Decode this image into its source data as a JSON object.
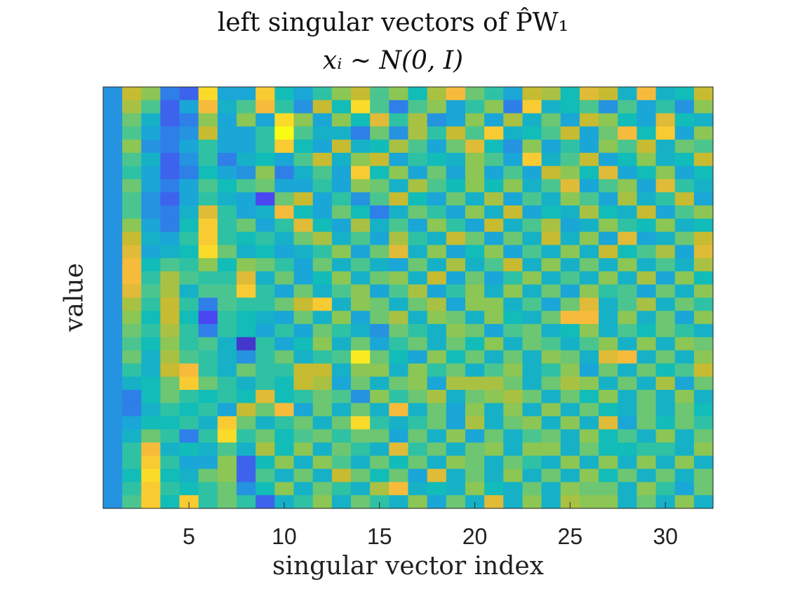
{
  "chart_data": {
    "type": "heatmap",
    "title": [
      "left singular vectors of P̂W₁",
      "xᵢ ~ N(0, I)"
    ],
    "xlabel": "singular vector index",
    "ylabel": "value",
    "xticks": [
      5,
      10,
      15,
      20,
      25,
      30
    ],
    "xlim": [
      0.5,
      32.5
    ],
    "n_rows": 32,
    "n_cols": 32,
    "grid": false,
    "colormap": "parula",
    "colormap_stops": [
      "#3e26a8",
      "#4a47f2",
      "#2f7fe8",
      "#1aa6d6",
      "#12bcb8",
      "#4bc58f",
      "#8cc654",
      "#c6bb31",
      "#f7bb3c",
      "#fadb2a",
      "#f9fb15"
    ],
    "values": [
      [
        0.25,
        0.7,
        0.6,
        0.2,
        0.15,
        0.9,
        0.3,
        0.3,
        0.85,
        0.4,
        0.3,
        0.45,
        0.6,
        0.7,
        0.5,
        0.6,
        0.4,
        0.65,
        0.8,
        0.55,
        0.45,
        0.3,
        0.7,
        0.65,
        0.4,
        0.75,
        0.7,
        0.35,
        0.8,
        0.35,
        0.4,
        0.7
      ],
      [
        0.25,
        0.65,
        0.5,
        0.15,
        0.3,
        0.8,
        0.35,
        0.5,
        0.8,
        0.45,
        0.25,
        0.7,
        0.4,
        0.9,
        0.5,
        0.2,
        0.5,
        0.6,
        0.3,
        0.45,
        0.6,
        0.2,
        0.85,
        0.35,
        0.4,
        0.5,
        0.25,
        0.5,
        0.3,
        0.45,
        0.25,
        0.6
      ],
      [
        0.25,
        0.55,
        0.35,
        0.15,
        0.2,
        0.6,
        0.3,
        0.6,
        0.3,
        0.9,
        0.6,
        0.3,
        0.6,
        0.4,
        0.75,
        0.45,
        0.65,
        0.25,
        0.3,
        0.6,
        0.3,
        0.65,
        0.35,
        0.55,
        0.3,
        0.7,
        0.6,
        0.4,
        0.3,
        0.75,
        0.4,
        0.35
      ],
      [
        0.25,
        0.5,
        0.3,
        0.2,
        0.25,
        0.7,
        0.3,
        0.3,
        0.45,
        1.0,
        0.5,
        0.35,
        0.35,
        0.2,
        0.55,
        0.25,
        0.65,
        0.45,
        0.7,
        0.5,
        0.85,
        0.35,
        0.4,
        0.5,
        0.7,
        0.3,
        0.55,
        0.8,
        0.4,
        0.85,
        0.3,
        0.6
      ],
      [
        0.25,
        0.6,
        0.25,
        0.2,
        0.3,
        0.45,
        0.3,
        0.3,
        0.45,
        0.85,
        0.4,
        0.3,
        0.7,
        0.35,
        0.4,
        0.65,
        0.5,
        0.3,
        0.55,
        0.75,
        0.4,
        0.25,
        0.6,
        0.3,
        0.45,
        0.3,
        0.6,
        0.5,
        0.7,
        0.35,
        0.55,
        0.5
      ],
      [
        0.25,
        0.5,
        0.35,
        0.15,
        0.25,
        0.45,
        0.2,
        0.35,
        0.4,
        0.3,
        0.5,
        0.7,
        0.35,
        0.6,
        0.7,
        0.3,
        0.45,
        0.4,
        0.35,
        0.6,
        0.5,
        0.3,
        0.85,
        0.35,
        0.5,
        0.7,
        0.3,
        0.4,
        0.6,
        0.35,
        0.4,
        0.7
      ],
      [
        0.25,
        0.45,
        0.3,
        0.15,
        0.2,
        0.4,
        0.3,
        0.25,
        0.6,
        0.2,
        0.35,
        0.5,
        0.3,
        0.85,
        0.4,
        0.6,
        0.3,
        0.55,
        0.3,
        0.6,
        0.3,
        0.5,
        0.3,
        0.7,
        0.6,
        0.4,
        0.75,
        0.3,
        0.4,
        0.6,
        0.3,
        0.4
      ],
      [
        0.25,
        0.55,
        0.3,
        0.2,
        0.3,
        0.5,
        0.4,
        0.5,
        0.55,
        0.3,
        0.3,
        0.45,
        0.3,
        0.6,
        0.55,
        0.35,
        0.65,
        0.5,
        0.4,
        0.6,
        0.4,
        0.6,
        0.35,
        0.5,
        0.75,
        0.3,
        0.5,
        0.6,
        0.3,
        0.75,
        0.45,
        0.35
      ],
      [
        0.25,
        0.5,
        0.25,
        0.15,
        0.3,
        0.45,
        0.35,
        0.3,
        0.1,
        0.55,
        0.7,
        0.3,
        0.45,
        0.25,
        0.5,
        0.7,
        0.4,
        0.3,
        0.55,
        0.35,
        0.65,
        0.3,
        0.5,
        0.35,
        0.6,
        0.5,
        0.3,
        0.65,
        0.35,
        0.45,
        0.7,
        0.3
      ],
      [
        0.25,
        0.5,
        0.25,
        0.2,
        0.35,
        0.75,
        0.45,
        0.3,
        0.35,
        0.8,
        0.4,
        0.3,
        0.55,
        0.4,
        0.2,
        0.35,
        0.55,
        0.45,
        0.3,
        0.6,
        0.35,
        0.7,
        0.3,
        0.4,
        0.35,
        0.65,
        0.4,
        0.35,
        0.7,
        0.3,
        0.5,
        0.6
      ],
      [
        0.25,
        0.6,
        0.3,
        0.2,
        0.4,
        0.85,
        0.45,
        0.55,
        0.3,
        0.45,
        0.75,
        0.4,
        0.3,
        0.65,
        0.35,
        0.5,
        0.3,
        0.6,
        0.45,
        0.3,
        0.7,
        0.35,
        0.5,
        0.65,
        0.3,
        0.35,
        0.6,
        0.45,
        0.4,
        0.6,
        0.35,
        0.4
      ],
      [
        0.25,
        0.7,
        0.35,
        0.3,
        0.45,
        0.85,
        0.45,
        0.4,
        0.45,
        0.35,
        0.55,
        0.65,
        0.35,
        0.5,
        0.3,
        0.65,
        0.45,
        0.35,
        0.7,
        0.55,
        0.3,
        0.55,
        0.35,
        0.7,
        0.35,
        0.6,
        0.3,
        0.75,
        0.3,
        0.35,
        0.55,
        0.7
      ],
      [
        0.25,
        0.75,
        0.3,
        0.35,
        0.4,
        0.9,
        0.55,
        0.35,
        0.4,
        0.3,
        0.35,
        0.45,
        0.6,
        0.3,
        0.55,
        0.75,
        0.35,
        0.6,
        0.3,
        0.4,
        0.6,
        0.3,
        0.5,
        0.35,
        0.6,
        0.35,
        0.7,
        0.4,
        0.5,
        0.65,
        0.3,
        0.75
      ],
      [
        0.25,
        0.8,
        0.4,
        0.5,
        0.45,
        0.6,
        0.4,
        0.6,
        0.55,
        0.45,
        0.3,
        0.55,
        0.35,
        0.5,
        0.35,
        0.3,
        0.55,
        0.35,
        0.65,
        0.35,
        0.5,
        0.7,
        0.35,
        0.6,
        0.35,
        0.55,
        0.35,
        0.6,
        0.35,
        0.5,
        0.35,
        0.65
      ],
      [
        0.25,
        0.8,
        0.45,
        0.65,
        0.5,
        0.45,
        0.45,
        0.75,
        0.35,
        0.55,
        0.3,
        0.4,
        0.6,
        0.35,
        0.55,
        0.6,
        0.35,
        0.7,
        0.3,
        0.55,
        0.3,
        0.45,
        0.6,
        0.35,
        0.5,
        0.35,
        0.6,
        0.35,
        0.65,
        0.3,
        0.6,
        0.4
      ],
      [
        0.25,
        0.75,
        0.5,
        0.65,
        0.35,
        0.5,
        0.5,
        0.85,
        0.45,
        0.3,
        0.55,
        0.35,
        0.5,
        0.6,
        0.3,
        0.5,
        0.65,
        0.3,
        0.45,
        0.6,
        0.35,
        0.6,
        0.35,
        0.55,
        0.3,
        0.6,
        0.45,
        0.5,
        0.3,
        0.55,
        0.35,
        0.6
      ],
      [
        0.25,
        0.65,
        0.45,
        0.7,
        0.45,
        0.2,
        0.5,
        0.45,
        0.45,
        0.55,
        0.7,
        0.85,
        0.35,
        0.6,
        0.55,
        0.35,
        0.55,
        0.65,
        0.3,
        0.6,
        0.6,
        0.35,
        0.5,
        0.3,
        0.55,
        0.75,
        0.35,
        0.5,
        0.65,
        0.35,
        0.55,
        0.45
      ],
      [
        0.25,
        0.6,
        0.4,
        0.7,
        0.4,
        0.1,
        0.45,
        0.4,
        0.35,
        0.3,
        0.55,
        0.35,
        0.6,
        0.3,
        0.55,
        0.65,
        0.35,
        0.6,
        0.55,
        0.35,
        0.6,
        0.4,
        0.35,
        0.55,
        0.8,
        0.8,
        0.35,
        0.6,
        0.35,
        0.55,
        0.3,
        0.6
      ],
      [
        0.25,
        0.55,
        0.45,
        0.65,
        0.45,
        0.2,
        0.45,
        0.4,
        0.3,
        0.45,
        0.3,
        0.55,
        0.45,
        0.35,
        0.25,
        0.55,
        0.45,
        0.35,
        0.6,
        0.55,
        0.3,
        0.5,
        0.55,
        0.35,
        0.4,
        0.6,
        0.35,
        0.5,
        0.4,
        0.55,
        0.45,
        0.35
      ],
      [
        0.25,
        0.5,
        0.4,
        0.6,
        0.45,
        0.5,
        0.35,
        0.05,
        0.45,
        0.3,
        0.4,
        0.6,
        0.35,
        0.55,
        0.3,
        0.45,
        0.55,
        0.35,
        0.55,
        0.4,
        0.6,
        0.35,
        0.55,
        0.5,
        0.35,
        0.5,
        0.6,
        0.35,
        0.6,
        0.35,
        0.6,
        0.55
      ],
      [
        0.25,
        0.55,
        0.35,
        0.65,
        0.5,
        0.45,
        0.35,
        0.25,
        0.45,
        0.55,
        0.35,
        0.45,
        0.5,
        0.95,
        0.55,
        0.4,
        0.3,
        0.6,
        0.4,
        0.55,
        0.35,
        0.55,
        0.35,
        0.6,
        0.55,
        0.35,
        0.75,
        0.8,
        0.35,
        0.55,
        0.35,
        0.6
      ],
      [
        0.25,
        0.45,
        0.35,
        0.7,
        0.8,
        0.45,
        0.35,
        0.55,
        0.45,
        0.45,
        0.7,
        0.7,
        0.35,
        0.6,
        0.6,
        0.35,
        0.6,
        0.45,
        0.55,
        0.35,
        0.5,
        0.6,
        0.35,
        0.45,
        0.6,
        0.3,
        0.55,
        0.35,
        0.55,
        0.4,
        0.5,
        0.7
      ],
      [
        0.25,
        0.35,
        0.4,
        0.55,
        0.85,
        0.55,
        0.45,
        0.35,
        0.45,
        0.4,
        0.7,
        0.65,
        0.3,
        0.55,
        0.35,
        0.55,
        0.6,
        0.3,
        0.65,
        0.65,
        0.65,
        0.55,
        0.35,
        0.55,
        0.65,
        0.6,
        0.35,
        0.55,
        0.35,
        0.65,
        0.3,
        0.55
      ],
      [
        0.25,
        0.2,
        0.4,
        0.55,
        0.45,
        0.4,
        0.45,
        0.4,
        0.75,
        0.4,
        0.45,
        0.55,
        0.5,
        0.25,
        0.6,
        0.45,
        0.55,
        0.65,
        0.35,
        0.55,
        0.6,
        0.65,
        0.55,
        0.35,
        0.55,
        0.4,
        0.6,
        0.35,
        0.55,
        0.35,
        0.6,
        0.35
      ],
      [
        0.25,
        0.2,
        0.35,
        0.45,
        0.4,
        0.45,
        0.3,
        0.7,
        0.55,
        0.8,
        0.3,
        0.55,
        0.35,
        0.55,
        0.35,
        0.8,
        0.35,
        0.55,
        0.3,
        0.6,
        0.35,
        0.6,
        0.35,
        0.6,
        0.35,
        0.55,
        0.4,
        0.35,
        0.55,
        0.35,
        0.55,
        0.4
      ],
      [
        0.25,
        0.3,
        0.4,
        0.4,
        0.45,
        0.35,
        0.85,
        0.55,
        0.35,
        0.45,
        0.55,
        0.35,
        0.55,
        0.9,
        0.45,
        0.35,
        0.45,
        0.55,
        0.3,
        0.65,
        0.35,
        0.55,
        0.6,
        0.35,
        0.6,
        0.35,
        0.75,
        0.3,
        0.55,
        0.4,
        0.55,
        0.45
      ],
      [
        0.25,
        0.35,
        0.55,
        0.45,
        0.2,
        0.45,
        0.9,
        0.45,
        0.55,
        0.4,
        0.5,
        0.55,
        0.45,
        0.55,
        0.55,
        0.3,
        0.55,
        0.35,
        0.6,
        0.3,
        0.55,
        0.35,
        0.5,
        0.55,
        0.35,
        0.6,
        0.4,
        0.5,
        0.35,
        0.6,
        0.35,
        0.55
      ],
      [
        0.25,
        0.45,
        0.8,
        0.35,
        0.4,
        0.35,
        0.5,
        0.35,
        0.65,
        0.4,
        0.6,
        0.35,
        0.55,
        0.45,
        0.35,
        0.75,
        0.45,
        0.55,
        0.35,
        0.55,
        0.6,
        0.35,
        0.6,
        0.6,
        0.35,
        0.55,
        0.4,
        0.4,
        0.45,
        0.45,
        0.35,
        0.6
      ],
      [
        0.25,
        0.45,
        0.85,
        0.45,
        0.3,
        0.3,
        0.6,
        0.15,
        0.4,
        0.6,
        0.35,
        0.6,
        0.5,
        0.35,
        0.55,
        0.4,
        0.55,
        0.35,
        0.6,
        0.55,
        0.35,
        0.55,
        0.45,
        0.35,
        0.6,
        0.35,
        0.6,
        0.35,
        0.6,
        0.35,
        0.6,
        0.35
      ],
      [
        0.25,
        0.4,
        0.9,
        0.4,
        0.35,
        0.55,
        0.6,
        0.15,
        0.5,
        0.35,
        0.55,
        0.35,
        0.7,
        0.55,
        0.4,
        0.55,
        0.3,
        0.75,
        0.35,
        0.55,
        0.35,
        0.6,
        0.35,
        0.55,
        0.35,
        0.6,
        0.4,
        0.55,
        0.35,
        0.55,
        0.35,
        0.55
      ],
      [
        0.25,
        0.45,
        0.85,
        0.45,
        0.4,
        0.45,
        0.55,
        0.25,
        0.4,
        0.6,
        0.35,
        0.55,
        0.45,
        0.35,
        0.65,
        0.8,
        0.35,
        0.4,
        0.35,
        0.6,
        0.4,
        0.35,
        0.55,
        0.35,
        0.6,
        0.55,
        0.55,
        0.35,
        0.6,
        0.45,
        0.3,
        0.55
      ],
      [
        0.25,
        0.5,
        0.85,
        0.4,
        0.85,
        0.45,
        0.55,
        0.45,
        0.15,
        0.35,
        0.45,
        0.6,
        0.35,
        0.55,
        0.45,
        0.35,
        0.6,
        0.3,
        0.55,
        0.35,
        0.75,
        0.35,
        0.6,
        0.35,
        0.65,
        0.6,
        0.6,
        0.35,
        0.55,
        0.35,
        0.6,
        0.35
      ]
    ]
  }
}
